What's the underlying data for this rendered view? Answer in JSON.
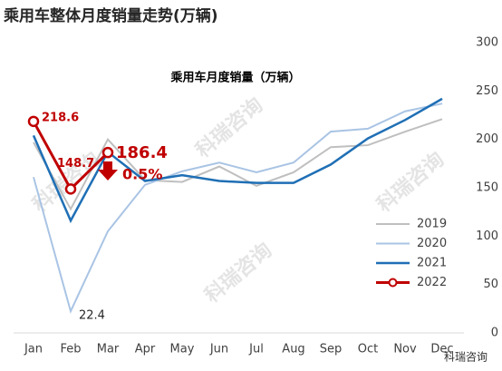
{
  "chart_data": {
    "type": "line",
    "title": "乘用车整体月度销量走势(万辆)",
    "subtitle": "乘用车月度销量（万辆）",
    "categories": [
      "Jan",
      "Feb",
      "Mar",
      "Apr",
      "May",
      "Jun",
      "Jul",
      "Aug",
      "Sep",
      "Oct",
      "Nov",
      "Dec"
    ],
    "series": [
      {
        "name": "2019",
        "color": "#bfbfbf",
        "values": [
          197,
          128,
          200,
          158,
          156,
          172,
          152,
          166,
          192,
          194,
          208,
          221
        ]
      },
      {
        "name": "2020",
        "color": "#a9c4e4",
        "values": [
          161,
          22.4,
          105,
          153,
          167,
          176,
          166,
          176,
          208,
          211,
          229,
          237
        ]
      },
      {
        "name": "2021",
        "color": "#1f6fb5",
        "values": [
          204,
          116,
          187,
          157,
          163,
          157,
          155,
          155,
          174,
          201,
          220,
          242
        ]
      },
      {
        "name": "2022",
        "color": "#c00000",
        "values": [
          218.6,
          148.7,
          186.4,
          null,
          null,
          null,
          null,
          null,
          null,
          null,
          null,
          null
        ]
      }
    ],
    "ylim": [
      0,
      300
    ],
    "yticks": [
      0,
      50,
      100,
      150,
      200,
      250,
      300
    ],
    "annotation": "0.5%",
    "watermark": "科瑞咨询",
    "legend": "lower right"
  }
}
